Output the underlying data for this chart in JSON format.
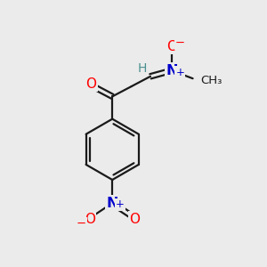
{
  "bg_color": "#ebebeb",
  "bond_color": "#1a1a1a",
  "atom_colors": {
    "O": "#ff0000",
    "N": "#0000cd",
    "C": "#1a1a1a",
    "H": "#4a9090"
  },
  "figsize": [
    3.0,
    3.0
  ],
  "dpi": 100
}
